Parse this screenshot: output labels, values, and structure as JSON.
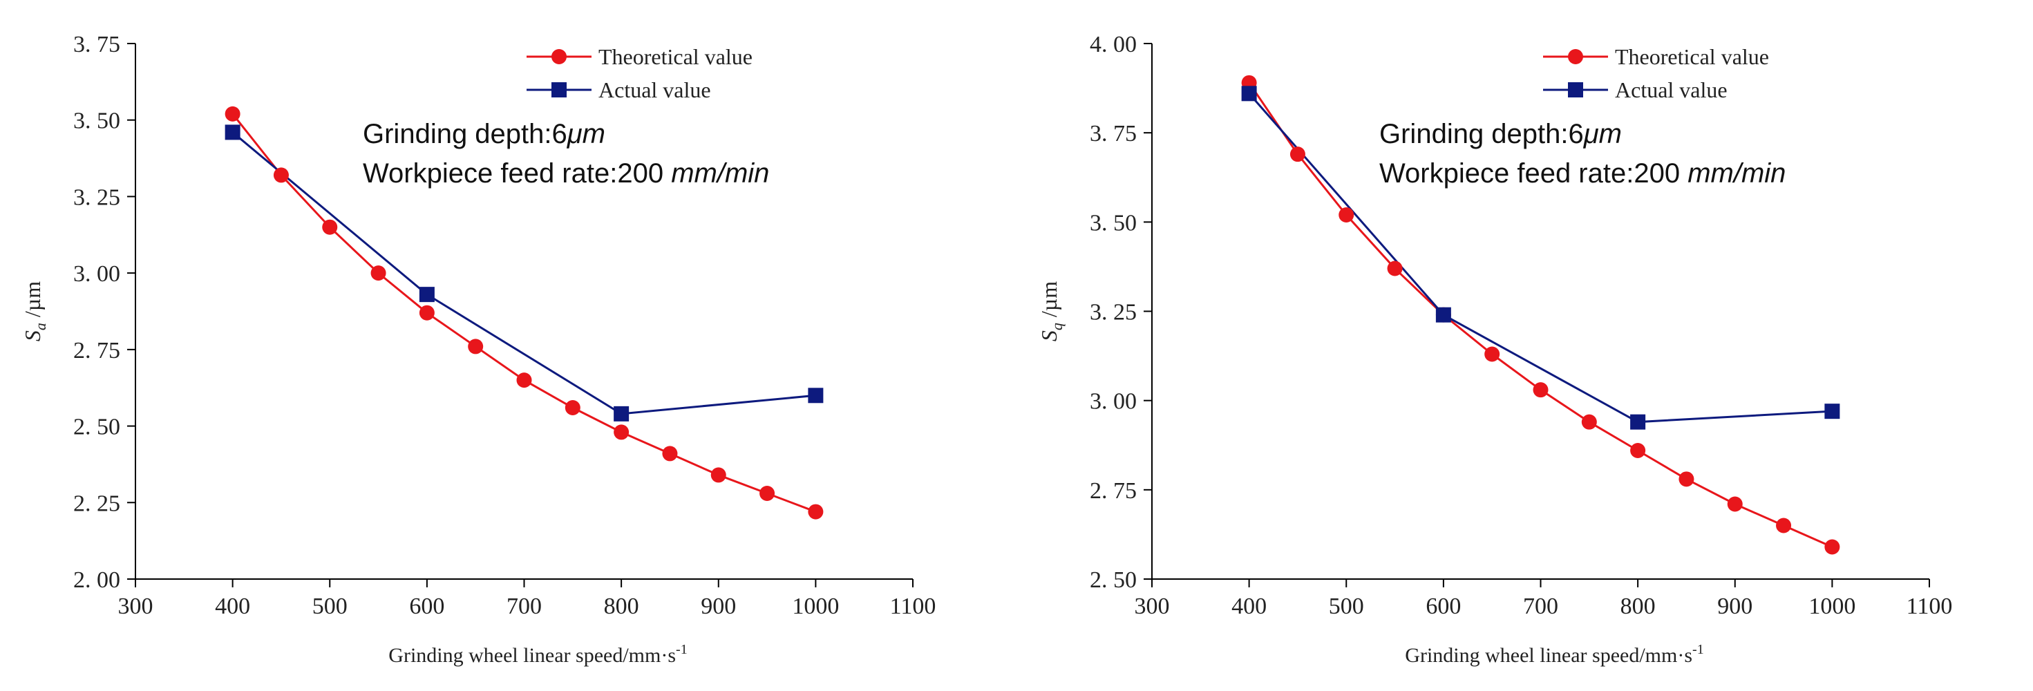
{
  "chart_data": [
    {
      "type": "line",
      "xlabel": "Grinding wheel linear speed/mm·s",
      "xlabel_sup": "-1",
      "ylabel_symbol": "S",
      "ylabel_sub": "a",
      "ylabel_unit": " /µm",
      "xlim": [
        300,
        1100
      ],
      "ylim": [
        2.0,
        3.75
      ],
      "xticks": [
        300,
        400,
        500,
        600,
        700,
        800,
        900,
        1000,
        1100
      ],
      "xtick_labels": [
        "300",
        "400",
        "500",
        "600",
        "700",
        "800",
        "900",
        "1000",
        "1100"
      ],
      "yticks": [
        2.0,
        2.25,
        2.5,
        2.75,
        3.0,
        3.25,
        3.5,
        3.75
      ],
      "ytick_labels": [
        "2. 00",
        "2. 25",
        "2. 50",
        "2. 75",
        "3. 00",
        "3. 25",
        "3. 50",
        "3. 75"
      ],
      "legend_position": "top-center",
      "annotation_line1": "Grinding depth:6",
      "annotation_line1_unit": "μm",
      "annotation_line2": "Workpiece feed rate:200 ",
      "annotation_line2_unit": "mm/min",
      "series": [
        {
          "name": "Theoretical value",
          "color": "#e8161b",
          "marker": "circle",
          "x": [
            400,
            450,
            500,
            550,
            600,
            650,
            700,
            750,
            800,
            850,
            900,
            950,
            1000
          ],
          "y": [
            3.52,
            3.32,
            3.15,
            3.0,
            2.87,
            2.76,
            2.65,
            2.56,
            2.48,
            2.41,
            2.34,
            2.28,
            2.22
          ]
        },
        {
          "name": "Actual value",
          "color": "#0d1a7e",
          "marker": "square",
          "x": [
            400,
            600,
            800,
            1000
          ],
          "y": [
            3.46,
            2.93,
            2.54,
            2.6
          ]
        }
      ]
    },
    {
      "type": "line",
      "xlabel": "Grinding wheel linear speed/mm·s",
      "xlabel_sup": "-1",
      "ylabel_symbol": "S",
      "ylabel_sub": "q",
      "ylabel_unit": " /µm",
      "xlim": [
        300,
        1100
      ],
      "ylim": [
        2.5,
        4.0
      ],
      "xticks": [
        300,
        400,
        500,
        600,
        700,
        800,
        900,
        1000,
        1100
      ],
      "xtick_labels": [
        "300",
        "400",
        "500",
        "600",
        "700",
        "800",
        "900",
        "1000",
        "1100"
      ],
      "yticks": [
        2.5,
        2.75,
        3.0,
        3.25,
        3.5,
        3.75,
        4.0
      ],
      "ytick_labels": [
        "2. 50",
        "2. 75",
        "3. 00",
        "3. 25",
        "3. 50",
        "3. 75",
        "4. 00"
      ],
      "legend_position": "top-center",
      "annotation_line1": "Grinding depth:6",
      "annotation_line1_unit": "μm",
      "annotation_line2": "Workpiece feed rate:200 ",
      "annotation_line2_unit": "mm/min",
      "series": [
        {
          "name": "Theoretical value",
          "color": "#e8161b",
          "marker": "circle",
          "x": [
            400,
            450,
            500,
            550,
            600,
            650,
            700,
            750,
            800,
            850,
            900,
            950,
            1000
          ],
          "y": [
            3.89,
            3.69,
            3.52,
            3.37,
            3.24,
            3.13,
            3.03,
            2.94,
            2.86,
            2.78,
            2.71,
            2.65,
            2.59
          ]
        },
        {
          "name": "Actual value",
          "color": "#0d1a7e",
          "marker": "square",
          "x": [
            400,
            600,
            800,
            1000
          ],
          "y": [
            3.86,
            3.24,
            2.94,
            2.97
          ]
        }
      ]
    }
  ]
}
